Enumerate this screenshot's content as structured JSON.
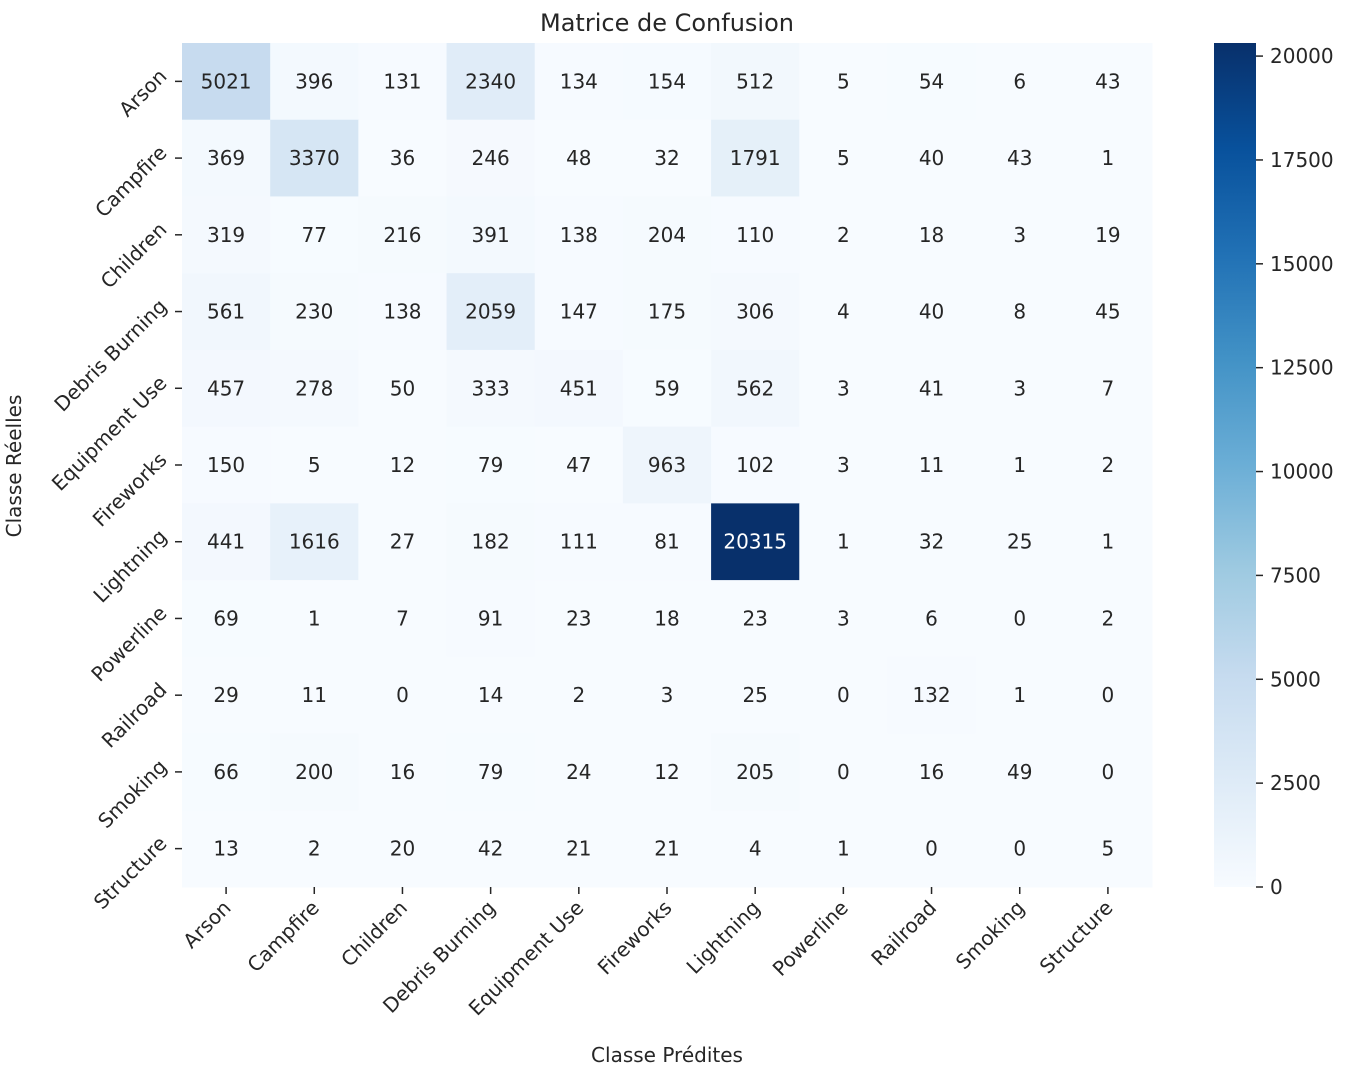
{
  "chart_data": {
    "type": "heatmap",
    "title": "Matrice de Confusion",
    "xlabel": "Classe Prédites",
    "ylabel": "Classe Réelles",
    "x_categories": [
      "Arson",
      "Campfire",
      "Children",
      "Debris Burning",
      "Equipment Use",
      "Fireworks",
      "Lightning",
      "Powerline",
      "Railroad",
      "Smoking",
      "Structure"
    ],
    "y_categories": [
      "Arson",
      "Campfire",
      "Children",
      "Debris Burning",
      "Equipment Use",
      "Fireworks",
      "Lightning",
      "Powerline",
      "Railroad",
      "Smoking",
      "Structure"
    ],
    "values": [
      [
        5021,
        396,
        131,
        2340,
        134,
        154,
        512,
        5,
        54,
        6,
        43
      ],
      [
        369,
        3370,
        36,
        246,
        48,
        32,
        1791,
        5,
        40,
        43,
        1
      ],
      [
        319,
        77,
        216,
        391,
        138,
        204,
        110,
        2,
        18,
        3,
        19
      ],
      [
        561,
        230,
        138,
        2059,
        147,
        175,
        306,
        4,
        40,
        8,
        45
      ],
      [
        457,
        278,
        50,
        333,
        451,
        59,
        562,
        3,
        41,
        3,
        7
      ],
      [
        150,
        5,
        12,
        79,
        47,
        963,
        102,
        3,
        11,
        1,
        2
      ],
      [
        441,
        1616,
        27,
        182,
        111,
        81,
        20315,
        1,
        32,
        25,
        1
      ],
      [
        69,
        1,
        7,
        91,
        23,
        18,
        23,
        3,
        6,
        0,
        2
      ],
      [
        29,
        11,
        0,
        14,
        2,
        3,
        25,
        0,
        132,
        1,
        0
      ],
      [
        66,
        200,
        16,
        79,
        24,
        12,
        205,
        0,
        16,
        49,
        0
      ],
      [
        13,
        2,
        20,
        42,
        21,
        21,
        4,
        1,
        0,
        0,
        5
      ]
    ],
    "colormap": "Blues",
    "colorbar": {
      "range": [
        0,
        20315
      ],
      "ticks": [
        0,
        2500,
        5000,
        7500,
        10000,
        12500,
        15000,
        17500,
        20000
      ]
    },
    "grid": false,
    "annotations": true
  }
}
